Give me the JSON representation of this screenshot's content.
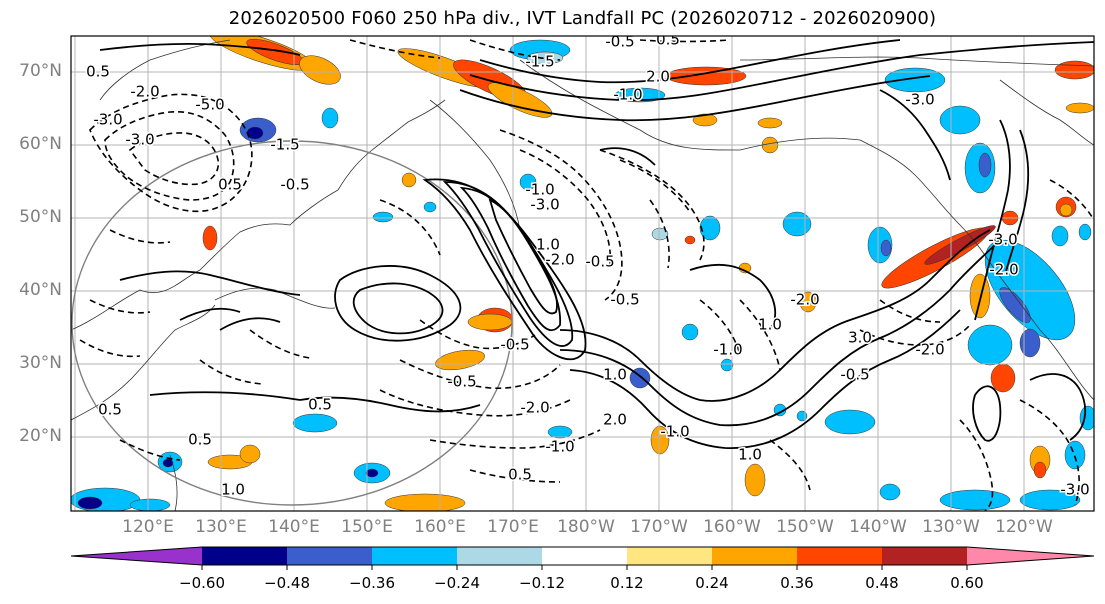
{
  "title": "2026020500 F060 250 hPa div., IVT Landfall PC (2026020712 - 2026020900)",
  "lat_labels": [
    "70°N",
    "60°N",
    "50°N",
    "40°N",
    "30°N",
    "20°N"
  ],
  "lon_labels": [
    "120°E",
    "130°E",
    "140°E",
    "150°E",
    "160°E",
    "170°E",
    "180°W",
    "170°W",
    "160°W",
    "150°W",
    "140°W",
    "130°W",
    "120°W"
  ],
  "contour_labels": [
    "0.5",
    "-1.5",
    "-0.5",
    "0.5",
    "-3.0",
    "-5.0",
    "-2.0",
    "-3.0",
    "-0.5",
    "0.5",
    "-1.5",
    "2.0",
    "-1.0",
    "-1.0",
    "1.0",
    "-3.0",
    "-2.0",
    "-0.5",
    "-0.5",
    "-0.5",
    "0.5",
    "0.5",
    "1.0",
    "2.0",
    "-2.0",
    "-1.0",
    "-1.0",
    "1.0",
    "-1.0",
    "-2.0",
    "3.0",
    "-2.0",
    "-3.0",
    "-2.0",
    "1.0",
    "-0.5",
    "-3.0",
    "0.5",
    "0.5",
    "1.0",
    "-3.0",
    "-0.5"
  ],
  "colorbar": {
    "colors": [
      "#9932cc",
      "#00008b",
      "#3a5fcd",
      "#00bfff",
      "#add8e6",
      "#ffffff",
      "#ffe680",
      "#ffa500",
      "#ff4500",
      "#b22222",
      "#ff88aa"
    ],
    "ticks": [
      "−0.60",
      "−0.48",
      "−0.36",
      "−0.24",
      "−0.12",
      "0.12",
      "0.24",
      "0.36",
      "0.48",
      "0.60"
    ]
  }
}
